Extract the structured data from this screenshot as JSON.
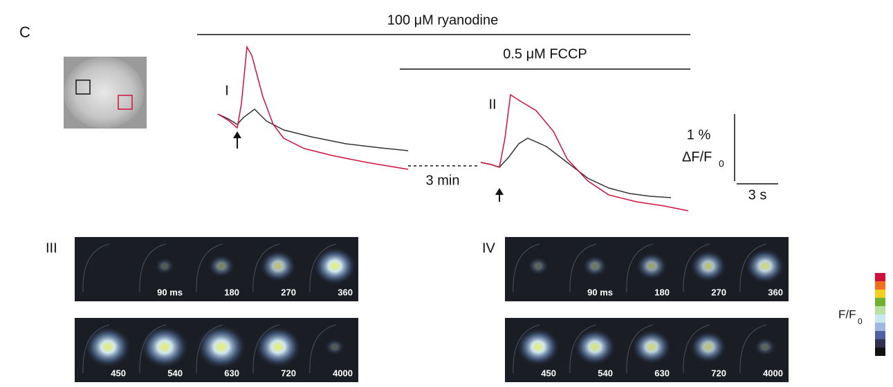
{
  "panel_label": "C",
  "treatments": [
    "100 μM ryanodine",
    "0.5 μM FCCP"
  ],
  "trace_labels": [
    "I",
    "II"
  ],
  "gap_label": "3 min",
  "scale_bar": {
    "y_value": "1 %",
    "y_unit": "ΔF/F",
    "y_unit_subscript": "0",
    "x_value": "3 s"
  },
  "image_series": [
    {
      "label": "III",
      "frame_labels": [
        "90 ms",
        "180",
        "270",
        "360",
        "450",
        "540",
        "630",
        "720",
        "4000"
      ]
    },
    {
      "label": "IV",
      "frame_labels": [
        "90 ms",
        "180",
        "270",
        "360",
        "450",
        "540",
        "630",
        "720",
        "4000"
      ]
    }
  ],
  "colorbar": {
    "label": "F/F",
    "label_subscript": "0"
  }
}
